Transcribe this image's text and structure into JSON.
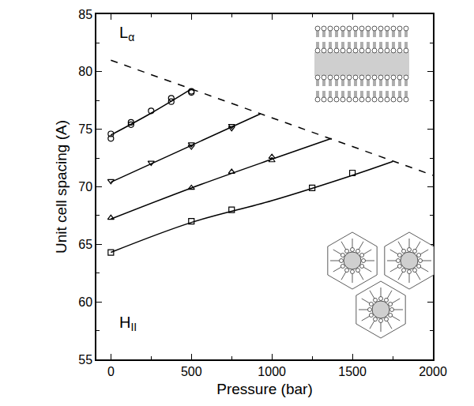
{
  "chart_data": {
    "type": "scatter",
    "x_label": "Pressure (bar)",
    "y_label": "Unit cell spacing (A)",
    "xlim": [
      -90,
      2000
    ],
    "xticks": [
      0,
      500,
      1000,
      1500,
      2000
    ],
    "ylim": [
      55,
      85
    ],
    "yticks": [
      55,
      60,
      65,
      70,
      75,
      80,
      85
    ],
    "grid": false,
    "color": "#000000",
    "series": [
      {
        "type": "scatter",
        "marker": "circle-open",
        "x": [
          0,
          0,
          125,
          125,
          250,
          375,
          375,
          500,
          500
        ],
        "values": [
          74.6,
          74.2,
          75.6,
          75.4,
          76.6,
          77.7,
          77.4,
          78.3,
          78.2
        ]
      },
      {
        "type": "line",
        "line_style": "solid",
        "x": [
          0,
          250,
          500
        ],
        "values": [
          74.5,
          76.4,
          78.5
        ]
      },
      {
        "type": "scatter",
        "marker": "triangle-down-open",
        "x": [
          0,
          250,
          500,
          500,
          750,
          750
        ],
        "values": [
          70.5,
          72.1,
          73.7,
          73.5,
          75.3,
          75.1
        ]
      },
      {
        "type": "line",
        "line_style": "solid",
        "x": [
          0,
          500,
          930
        ],
        "values": [
          70.4,
          73.6,
          76.35
        ]
      },
      {
        "type": "scatter",
        "marker": "triangle-up-open",
        "x": [
          0,
          500,
          750,
          1000,
          1000
        ],
        "values": [
          67.3,
          69.9,
          71.3,
          72.6,
          72.3
        ]
      },
      {
        "type": "line",
        "line_style": "solid",
        "x": [
          0,
          500,
          1000,
          1370
        ],
        "values": [
          67.2,
          69.9,
          72.4,
          74.2
        ]
      },
      {
        "type": "scatter",
        "marker": "square-open",
        "x": [
          0,
          500,
          750,
          1250,
          1500
        ],
        "values": [
          64.3,
          67.0,
          68.0,
          69.9,
          71.2
        ]
      },
      {
        "type": "line",
        "line_style": "solid",
        "x": [
          0,
          500,
          1000,
          1500,
          1750
        ],
        "values": [
          64.3,
          66.9,
          68.8,
          71.0,
          72.2
        ]
      },
      {
        "type": "line",
        "line_style": "dashed",
        "x": [
          0,
          2000
        ],
        "values": [
          81,
          71
        ]
      }
    ],
    "annotations": [
      {
        "text": "L",
        "sub": "α",
        "x": 40,
        "y": 83.3
      },
      {
        "text": "H",
        "sub": "II",
        "x": 40,
        "y": 58.1
      }
    ]
  }
}
